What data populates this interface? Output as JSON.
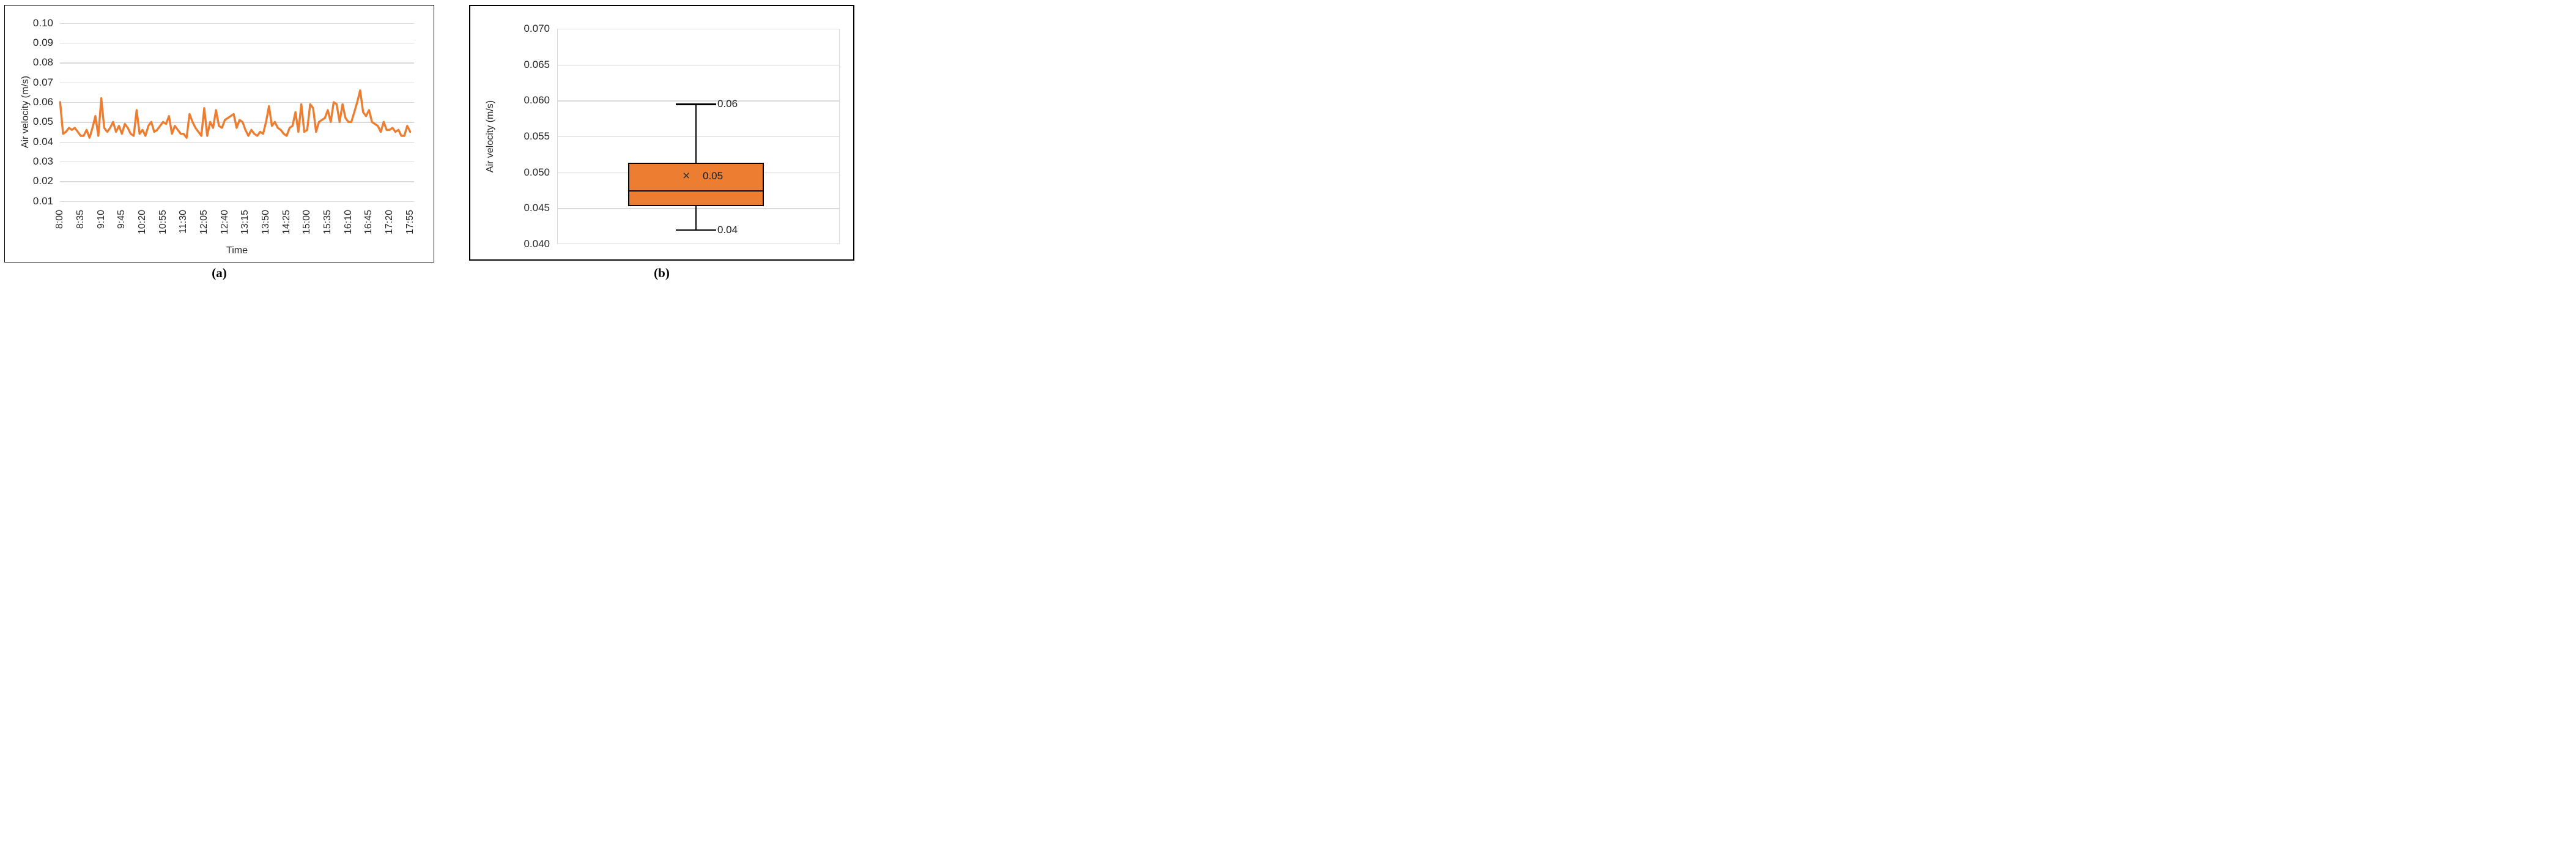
{
  "figure": {
    "captions": {
      "a": "(a)",
      "b": "(b)"
    }
  },
  "colors": {
    "accent_orange": "#ED7D31",
    "gridline_gray": "#D9D9D9",
    "panel_border": "#000000",
    "text": "#262626"
  },
  "chart_data": [
    {
      "type": "line",
      "panel": "a",
      "title": "",
      "xlabel": "Time",
      "ylabel": "Air velocity (m/s)",
      "ylim": [
        0.005,
        0.105
      ],
      "grid": true,
      "legend": "none",
      "y_ticks": [
        "0.10",
        "0.09",
        "0.08",
        "0.07",
        "0.06",
        "0.05",
        "0.04",
        "0.03",
        "0.02",
        "0.01"
      ],
      "y_tick_values": [
        0.1,
        0.09,
        0.08,
        0.07,
        0.06,
        0.05,
        0.04,
        0.03,
        0.02,
        0.01
      ],
      "x_tick_labels": [
        "8:00",
        "8:35",
        "9:10",
        "9:45",
        "10:20",
        "10:55",
        "11:30",
        "12:05",
        "12:40",
        "13:15",
        "13:50",
        "14:25",
        "15:00",
        "15:35",
        "16:10",
        "16:45",
        "17:20",
        "17:55"
      ],
      "sample_interval_minutes": 5,
      "points_per_tick": 7,
      "series": [
        {
          "name": "Air velocity",
          "color": "#ED7D31",
          "values": [
            0.06,
            0.044,
            0.045,
            0.047,
            0.046,
            0.047,
            0.045,
            0.043,
            0.043,
            0.046,
            0.042,
            0.047,
            0.053,
            0.043,
            0.062,
            0.047,
            0.045,
            0.047,
            0.05,
            0.045,
            0.048,
            0.044,
            0.049,
            0.047,
            0.044,
            0.043,
            0.056,
            0.044,
            0.046,
            0.043,
            0.048,
            0.05,
            0.045,
            0.046,
            0.048,
            0.05,
            0.049,
            0.053,
            0.044,
            0.048,
            0.046,
            0.044,
            0.044,
            0.042,
            0.054,
            0.05,
            0.047,
            0.045,
            0.043,
            0.057,
            0.043,
            0.05,
            0.047,
            0.056,
            0.048,
            0.047,
            0.051,
            0.052,
            0.053,
            0.054,
            0.047,
            0.051,
            0.05,
            0.046,
            0.043,
            0.046,
            0.044,
            0.043,
            0.045,
            0.044,
            0.05,
            0.058,
            0.048,
            0.05,
            0.047,
            0.046,
            0.044,
            0.043,
            0.047,
            0.048,
            0.055,
            0.045,
            0.059,
            0.045,
            0.046,
            0.059,
            0.057,
            0.045,
            0.05,
            0.051,
            0.052,
            0.056,
            0.05,
            0.06,
            0.059,
            0.05,
            0.059,
            0.052,
            0.05,
            0.05,
            0.055,
            0.06,
            0.066,
            0.055,
            0.053,
            0.056,
            0.05,
            0.049,
            0.048,
            0.045,
            0.05,
            0.046,
            0.046,
            0.047,
            0.045,
            0.046,
            0.043,
            0.043,
            0.048,
            0.045
          ]
        }
      ]
    },
    {
      "type": "boxplot",
      "panel": "b",
      "title": "",
      "xlabel": "",
      "ylabel": "Air velocity (m/s)",
      "ylim": [
        0.04,
        0.07
      ],
      "grid": true,
      "y_ticks": [
        "0.070",
        "0.065",
        "0.060",
        "0.055",
        "0.050",
        "0.045",
        "0.040"
      ],
      "y_tick_values": [
        0.07,
        0.065,
        0.06,
        0.055,
        0.05,
        0.045,
        0.04
      ],
      "box": {
        "whisker_high": 0.0595,
        "q3": 0.0513,
        "median": 0.0475,
        "q1": 0.0453,
        "whisker_low": 0.042,
        "mean": 0.0495,
        "fill_color": "#ED7D31",
        "mean_marker": "×",
        "annotations": {
          "high": "0.06",
          "mean": "0.05",
          "low": "0.04"
        }
      }
    }
  ]
}
